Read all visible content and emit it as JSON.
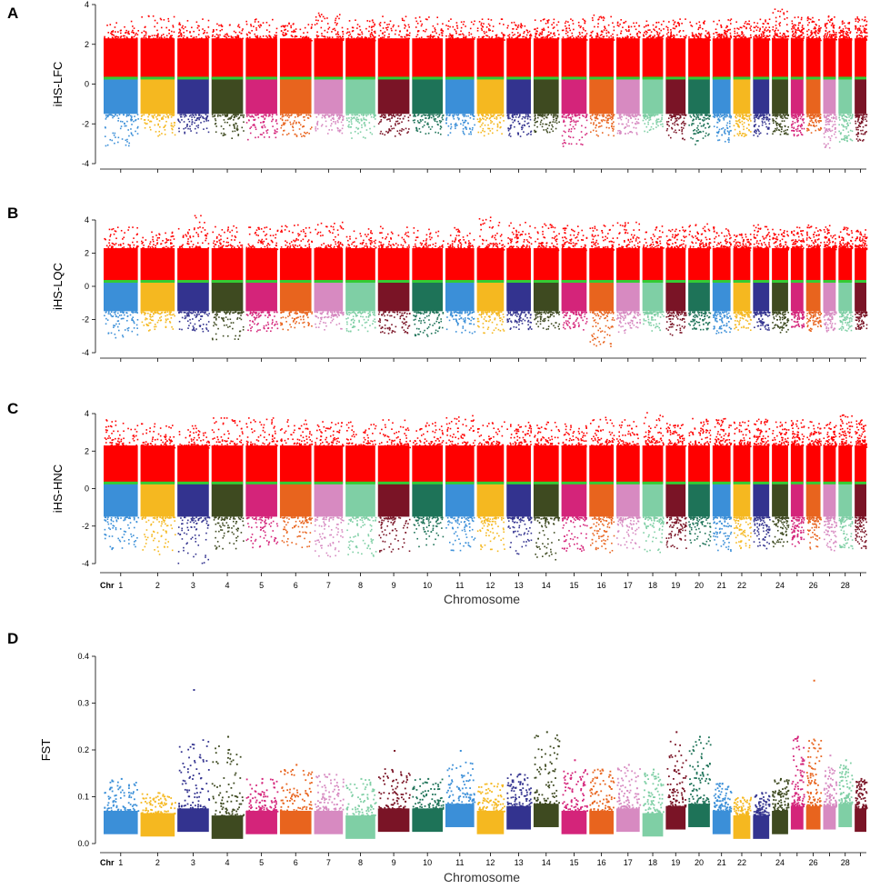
{
  "figure": {
    "chromosome_colors": [
      "#3b8fd8",
      "#f5b820",
      "#33338f",
      "#3e4a20",
      "#d4247a",
      "#e8641e",
      "#d78ac1",
      "#7fcfa5",
      "#7a1426",
      "#1e7358",
      "#3b8fd8",
      "#f5b820",
      "#33338f",
      "#3e4a20",
      "#d4247a",
      "#e8641e",
      "#d78ac1",
      "#7fcfa5",
      "#7a1426",
      "#1e7358",
      "#3b8fd8",
      "#f5b820",
      "#33338f",
      "#3e4a20",
      "#d4247a",
      "#e8641e",
      "#d78ac1",
      "#7fcfa5",
      "#7a1426"
    ],
    "ihs_positive_color": "#ff0000",
    "threshold_line_color": "#33cc33"
  },
  "chart_data": [
    {
      "type": "scatter",
      "panel": "A",
      "ylabel": "iHS-LFC",
      "xlabel": "",
      "ylim": [
        -4,
        4
      ],
      "yticks": [
        "-4",
        "-2",
        "0",
        "2",
        "4"
      ],
      "threshold": 0.3,
      "chromosomes": [
        "1",
        "2",
        "3",
        "4",
        "5",
        "6",
        "7",
        "8",
        "9",
        "10",
        "11",
        "12",
        "13",
        "14",
        "15",
        "16",
        "17",
        "18",
        "19",
        "20",
        "21",
        "22",
        "23",
        "24",
        "25",
        "26",
        "27",
        "28",
        "29"
      ],
      "chromosome_tick_labels": [],
      "chr_label": "",
      "series": [
        {
          "name": "positive",
          "max_abs": [
            3.2,
            3.6,
            3.3,
            3.1,
            3.3,
            3.2,
            3.6,
            3.3,
            3.5,
            3.4,
            3.3,
            3.3,
            3.2,
            3.3,
            3.3,
            3.5,
            3.3,
            3.2,
            3.3,
            3.2,
            3.3,
            3.2,
            3.3,
            3.8,
            3.4,
            3.4,
            3.5,
            3.2,
            3.4
          ]
        },
        {
          "name": "negative",
          "max_abs": [
            3.1,
            2.6,
            2.5,
            2.8,
            2.8,
            2.6,
            2.5,
            2.7,
            2.6,
            2.5,
            2.6,
            2.6,
            2.6,
            2.4,
            3.1,
            2.6,
            2.5,
            2.4,
            2.8,
            3.0,
            2.9,
            2.6,
            2.6,
            2.5,
            2.6,
            2.5,
            3.2,
            3.0,
            3.0
          ]
        }
      ]
    },
    {
      "type": "scatter",
      "panel": "B",
      "ylabel": "iHS-LQC",
      "xlabel": "",
      "ylim": [
        -4,
        4
      ],
      "yticks": [
        "-4",
        "-2",
        "0",
        "2",
        "4"
      ],
      "threshold": 0.3,
      "chromosomes": [
        "1",
        "2",
        "3",
        "4",
        "5",
        "6",
        "7",
        "8",
        "9",
        "10",
        "11",
        "12",
        "13",
        "14",
        "15",
        "16",
        "17",
        "18",
        "19",
        "20",
        "21",
        "22",
        "23",
        "24",
        "25",
        "26",
        "27",
        "28",
        "29"
      ],
      "chromosome_tick_labels": [],
      "chr_label": "",
      "series": [
        {
          "name": "positive",
          "max_abs": [
            3.6,
            3.4,
            4.3,
            3.7,
            3.6,
            3.8,
            3.9,
            3.5,
            3.7,
            3.6,
            3.6,
            4.2,
            3.9,
            3.8,
            3.7,
            3.8,
            3.9,
            3.7,
            3.6,
            3.8,
            3.6,
            3.2,
            3.8,
            3.5,
            3.6,
            3.8,
            3.7,
            3.6,
            3.5
          ]
        },
        {
          "name": "negative",
          "max_abs": [
            3.1,
            2.7,
            2.7,
            3.2,
            2.7,
            2.6,
            2.6,
            2.7,
            2.8,
            3.0,
            2.9,
            2.8,
            2.6,
            2.6,
            2.6,
            3.6,
            2.8,
            2.7,
            2.9,
            2.6,
            2.8,
            2.6,
            2.6,
            2.8,
            2.6,
            2.7,
            2.7,
            2.7,
            2.6
          ]
        }
      ]
    },
    {
      "type": "scatter",
      "panel": "C",
      "ylabel": "iHS-HNC",
      "xlabel": "Chromosome",
      "ylim": [
        -4,
        4
      ],
      "yticks": [
        "-4",
        "-2",
        "0",
        "2",
        "4"
      ],
      "threshold": 0.3,
      "chromosomes": [
        "1",
        "2",
        "3",
        "4",
        "5",
        "6",
        "7",
        "8",
        "9",
        "10",
        "11",
        "12",
        "13",
        "14",
        "15",
        "16",
        "17",
        "18",
        "19",
        "20",
        "21",
        "22",
        "23",
        "24",
        "25",
        "26",
        "27",
        "28",
        "29"
      ],
      "chromosome_tick_labels": [
        "1",
        "2",
        "3",
        "4",
        "5",
        "6",
        "7",
        "8",
        "9",
        "10",
        "11",
        "12",
        "13",
        "14",
        "15",
        "16",
        "17",
        "18",
        "19",
        "20",
        "21",
        "22",
        "",
        "24",
        "",
        "26",
        "",
        "28",
        ""
      ],
      "chr_label": "Chr",
      "series": [
        {
          "name": "positive",
          "max_abs": [
            3.7,
            3.6,
            3.4,
            3.8,
            3.8,
            3.7,
            3.6,
            3.6,
            3.7,
            3.6,
            4.0,
            3.6,
            3.6,
            3.6,
            3.5,
            3.9,
            3.7,
            4.1,
            3.6,
            3.8,
            3.8,
            3.7,
            3.8,
            3.6,
            3.7,
            3.7,
            3.6,
            4.1,
            3.7
          ]
        },
        {
          "name": "negative",
          "max_abs": [
            3.3,
            3.5,
            4.0,
            3.2,
            3.2,
            3.1,
            3.6,
            3.6,
            3.4,
            3.2,
            3.3,
            3.3,
            3.5,
            3.8,
            3.4,
            3.4,
            3.2,
            3.4,
            3.2,
            3.1,
            3.3,
            3.2,
            3.2,
            3.1,
            3.1,
            3.2,
            3.3,
            3.2,
            3.3
          ]
        }
      ]
    },
    {
      "type": "scatter",
      "panel": "D",
      "ylabel": "FST",
      "xlabel": "Chromosome",
      "ylim": [
        0,
        0.4
      ],
      "yticks": [
        "0.0",
        "0.1",
        "0.2",
        "0.3",
        "0.4"
      ],
      "chromosomes": [
        "1",
        "2",
        "3",
        "4",
        "5",
        "6",
        "7",
        "8",
        "9",
        "10",
        "11",
        "12",
        "13",
        "14",
        "15",
        "16",
        "17",
        "18",
        "19",
        "20",
        "21",
        "22",
        "23",
        "24",
        "25",
        "26",
        "27",
        "28",
        "29"
      ],
      "chromosome_tick_labels": [
        "1",
        "2",
        "3",
        "4",
        "5",
        "6",
        "7",
        "8",
        "9",
        "10",
        "11",
        "12",
        "13",
        "14",
        "15",
        "16",
        "17",
        "18",
        "19",
        "20",
        "21",
        "22",
        "",
        "24",
        "",
        "26",
        "",
        "28",
        ""
      ],
      "chr_label": "Chr",
      "series": [
        {
          "name": "FST_max",
          "values": [
            0.14,
            0.11,
            0.33,
            0.23,
            0.14,
            0.17,
            0.15,
            0.14,
            0.2,
            0.14,
            0.2,
            0.13,
            0.15,
            0.24,
            0.18,
            0.16,
            0.17,
            0.16,
            0.24,
            0.23,
            0.13,
            0.1,
            0.11,
            0.14,
            0.23,
            0.35,
            0.19,
            0.18,
            0.14
          ]
        },
        {
          "name": "FST_base",
          "values": [
            0.02,
            0.015,
            0.025,
            0.01,
            0.02,
            0.02,
            0.02,
            0.01,
            0.025,
            0.025,
            0.035,
            0.02,
            0.03,
            0.035,
            0.02,
            0.02,
            0.025,
            0.015,
            0.03,
            0.035,
            0.02,
            0.01,
            0.01,
            0.02,
            0.03,
            0.03,
            0.03,
            0.035,
            0.025
          ]
        }
      ]
    }
  ]
}
